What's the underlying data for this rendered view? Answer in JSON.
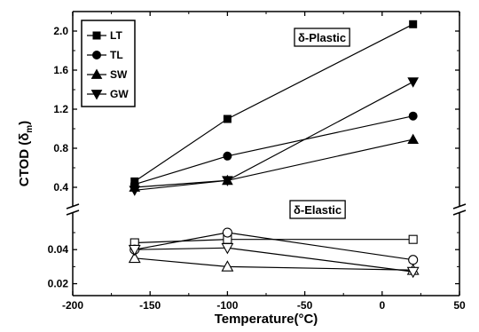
{
  "chart_data": {
    "type": "line",
    "xlabel": "Temperature(°C)",
    "ylabel": "CTOD (δ",
    "ylabel_subscript": "m",
    "ylabel_close": ")",
    "xlim": [
      -200,
      50
    ],
    "x_ticks": [
      -200,
      -150,
      -100,
      -50,
      0,
      50
    ],
    "upper_panel": {
      "ylim": [
        0.2,
        2.2
      ],
      "y_ticks": [
        0.4,
        0.8,
        1.2,
        1.6,
        2.0
      ],
      "y_tick_labels": [
        "0.4",
        "0.8",
        "1.2",
        "1.6",
        "2.0"
      ],
      "annotation": "δ-Plastic",
      "series": [
        {
          "name": "LT",
          "marker": "square-filled",
          "x": [
            -160,
            -100,
            20
          ],
          "y": [
            0.46,
            1.1,
            2.07
          ]
        },
        {
          "name": "TL",
          "marker": "circle-filled",
          "x": [
            -160,
            -100,
            20
          ],
          "y": [
            0.43,
            0.72,
            1.13
          ]
        },
        {
          "name": "SW",
          "marker": "triangle-up-filled",
          "x": [
            -160,
            -100,
            20
          ],
          "y": [
            0.4,
            0.47,
            0.89
          ]
        },
        {
          "name": "GW",
          "marker": "triangle-down-filled",
          "x": [
            -160,
            -100,
            20
          ],
          "y": [
            0.37,
            0.47,
            1.48
          ]
        }
      ]
    },
    "lower_panel": {
      "ylim": [
        0.013,
        0.062
      ],
      "y_ticks": [
        0.02,
        0.04
      ],
      "y_tick_labels": [
        "0.02",
        "0.04"
      ],
      "annotation": "δ-Elastic",
      "series": [
        {
          "name": "LT",
          "marker": "square-open",
          "x": [
            -160,
            -100,
            20
          ],
          "y": [
            0.044,
            0.046,
            0.046
          ]
        },
        {
          "name": "TL",
          "marker": "circle-open",
          "x": [
            -160,
            -100,
            20
          ],
          "y": [
            0.04,
            0.05,
            0.034
          ]
        },
        {
          "name": "SW",
          "marker": "triangle-up-open",
          "x": [
            -160,
            -100,
            20
          ],
          "y": [
            0.035,
            0.03,
            0.028
          ]
        },
        {
          "name": "GW",
          "marker": "triangle-down-open",
          "x": [
            -160,
            -100,
            20
          ],
          "y": [
            0.04,
            0.041,
            0.027
          ]
        }
      ]
    },
    "legend": {
      "position": "top-left",
      "entries": [
        "LT",
        "TL",
        "SW",
        "GW"
      ]
    },
    "axis_break": true,
    "grid": false,
    "colors": {
      "line": "#000000",
      "marker": "#000000",
      "background": "#ffffff"
    }
  }
}
